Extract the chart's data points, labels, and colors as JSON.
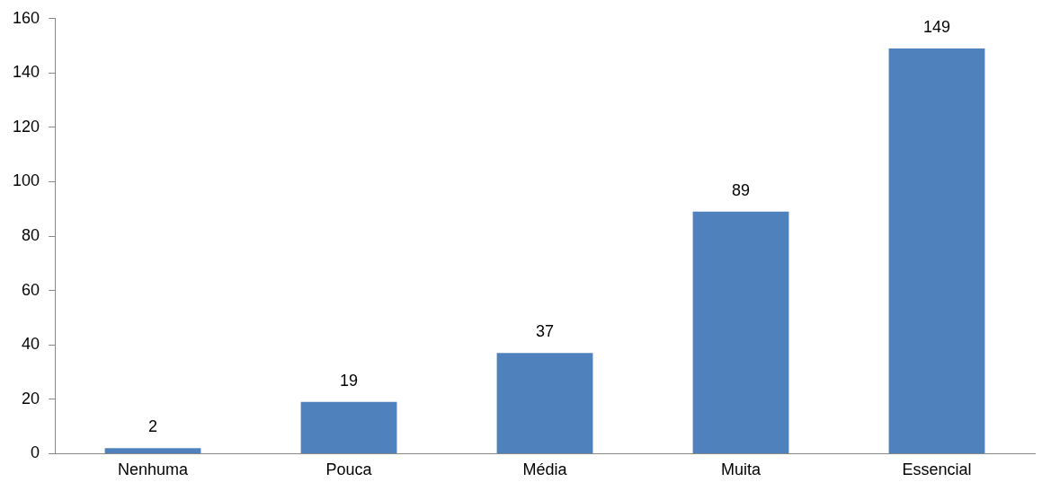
{
  "chart_data": {
    "type": "bar",
    "categories": [
      "Nenhuma",
      "Pouca",
      "Média",
      "Muita",
      "Essencial"
    ],
    "values": [
      2,
      19,
      37,
      89,
      149
    ],
    "color": "#4f81bd",
    "ylim": [
      0,
      160
    ],
    "yticks": [
      0,
      20,
      40,
      60,
      80,
      100,
      120,
      140,
      160
    ],
    "grid": false,
    "legend": false,
    "data_labels": true
  }
}
